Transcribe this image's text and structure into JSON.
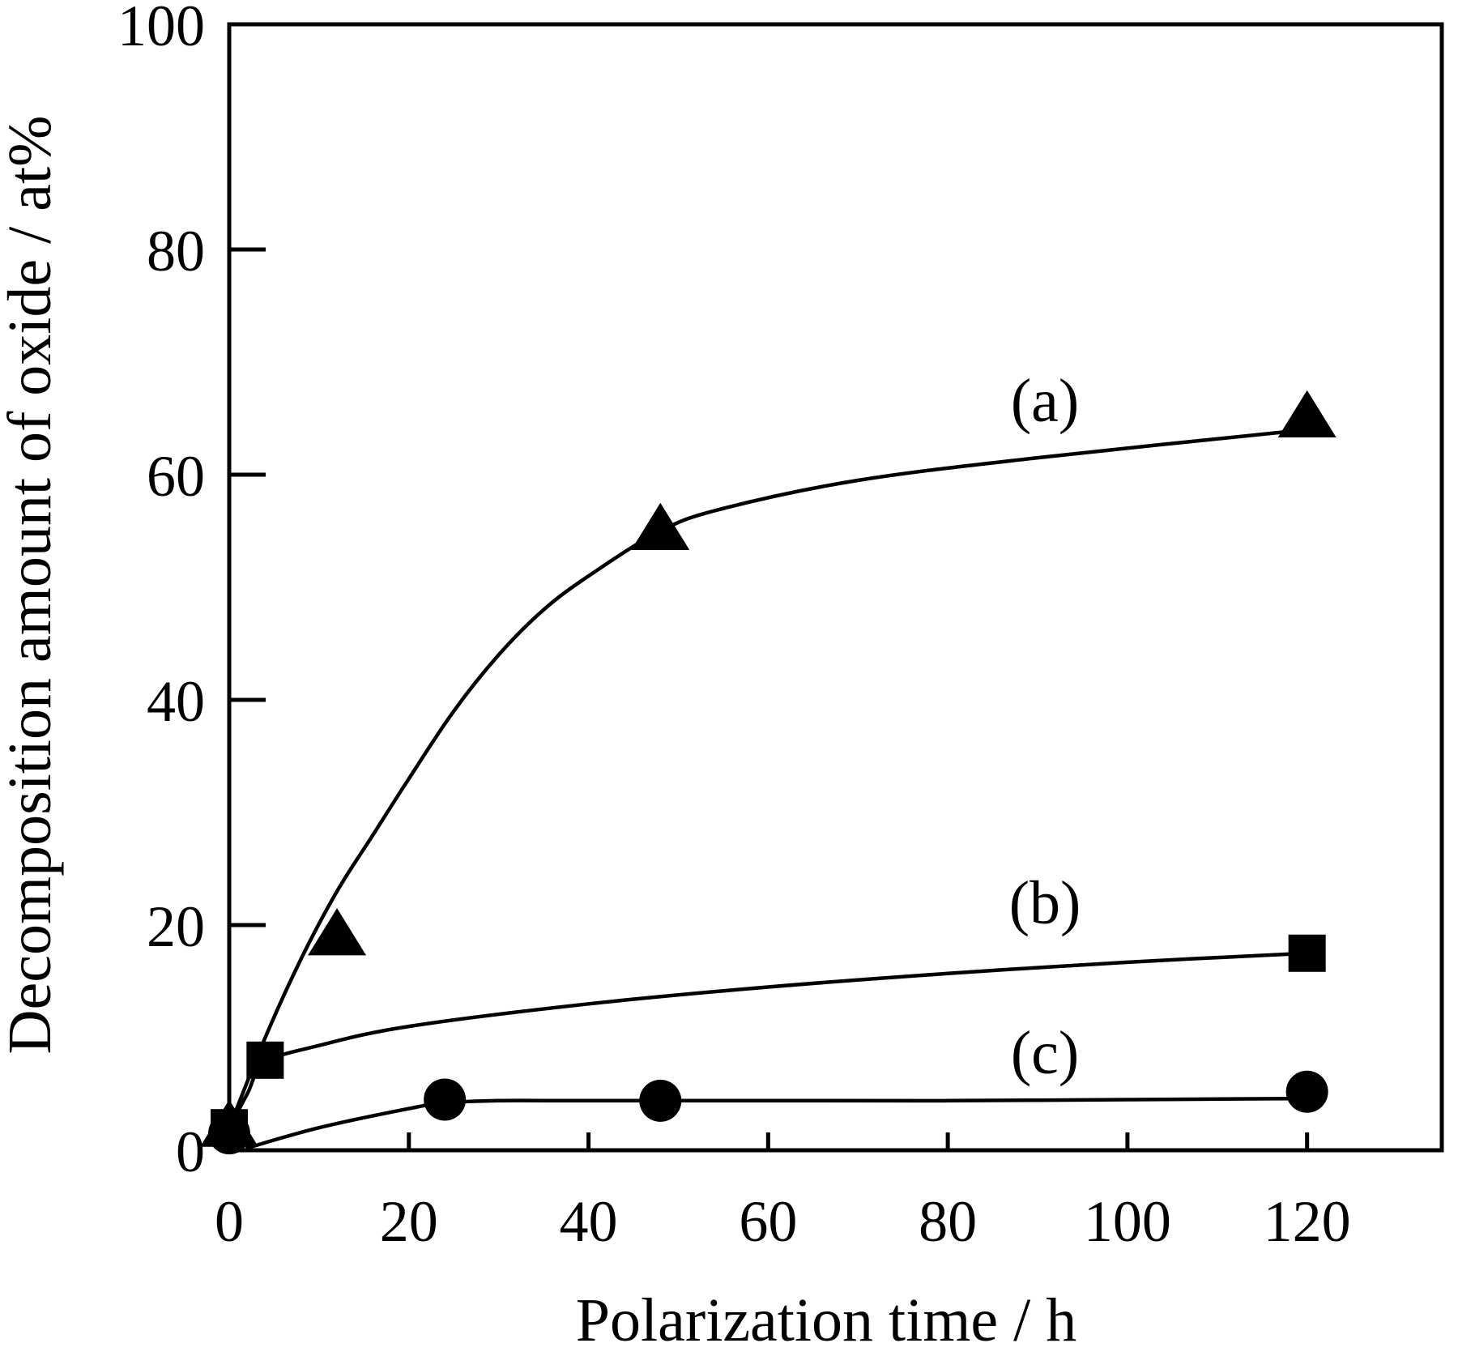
{
  "chart_data": {
    "type": "scatter",
    "title": "",
    "xlabel": "Polarization time / h",
    "ylabel": "Decomposition amount of oxide / at%",
    "xlim": [
      0,
      135
    ],
    "ylim": [
      0,
      100
    ],
    "xticks": [
      0,
      20,
      40,
      60,
      80,
      100,
      120
    ],
    "yticks": [
      0,
      20,
      40,
      60,
      80,
      100
    ],
    "grid": false,
    "legend": "none",
    "series": [
      {
        "label": "(a)",
        "marker": "triangle",
        "x": [
          0,
          12,
          48,
          120
        ],
        "y": [
          2,
          19,
          55,
          65
        ],
        "curve_x": [
          0,
          4,
          8,
          12,
          16,
          20,
          25,
          30,
          35,
          40,
          48,
          55,
          70,
          90,
          120
        ],
        "curve_y": [
          2,
          10,
          17,
          23,
          28,
          33,
          39,
          44,
          48,
          51,
          55,
          57,
          59.5,
          61.5,
          64
        ]
      },
      {
        "label": "(b)",
        "marker": "square",
        "x": [
          0,
          4,
          120
        ],
        "y": [
          2,
          8,
          17.5
        ],
        "curve_x": [
          0,
          2,
          4,
          10,
          20,
          40,
          60,
          80,
          100,
          120
        ],
        "curve_y": [
          2,
          5,
          7.8,
          9.3,
          11,
          13,
          14.5,
          15.7,
          16.7,
          17.5
        ]
      },
      {
        "label": "(c)",
        "marker": "circle",
        "x": [
          0,
          24,
          48,
          120
        ],
        "y": [
          1.5,
          4.5,
          4.4,
          5.2
        ],
        "curve_x": [
          2,
          10,
          20,
          24,
          30,
          40,
          60,
          80,
          100,
          120
        ],
        "curve_y": [
          0.2,
          2,
          3.7,
          4.2,
          4.4,
          4.4,
          4.4,
          4.4,
          4.5,
          4.6
        ]
      }
    ]
  }
}
